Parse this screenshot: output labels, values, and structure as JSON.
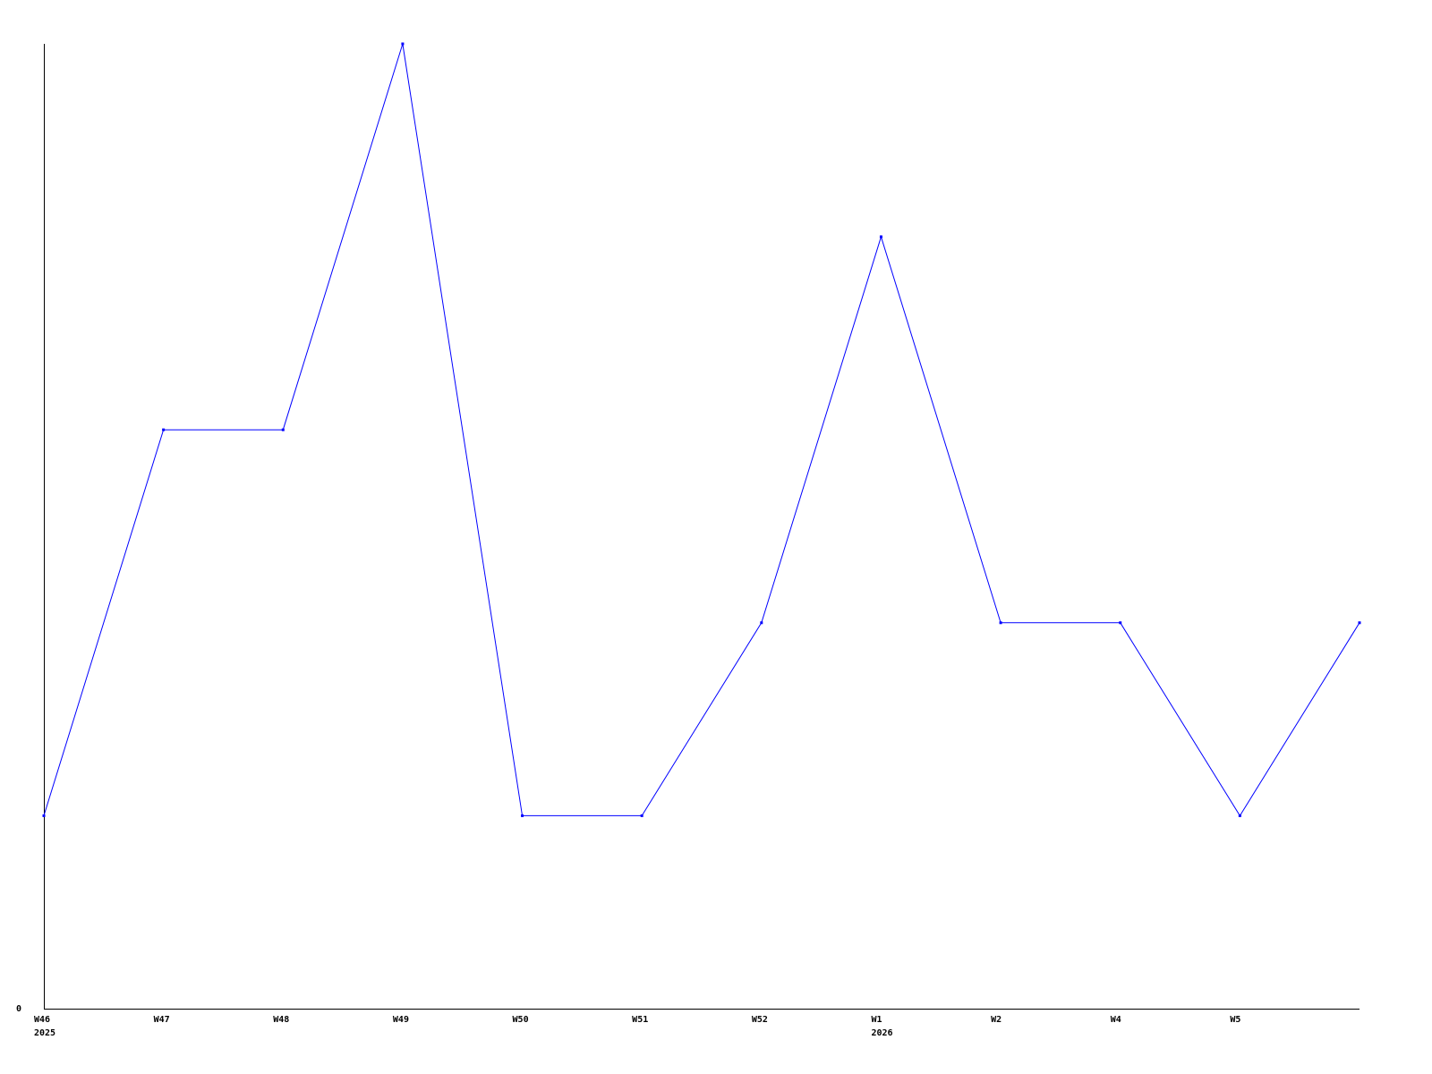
{
  "chart_data": {
    "type": "line",
    "title": "",
    "xlabel": "",
    "ylabel": "",
    "categories": [
      "W46",
      "W47",
      "W48",
      "W49",
      "W50",
      "W51",
      "W52",
      "W1",
      "W2",
      "W4",
      "W5",
      ""
    ],
    "year_labels": [
      {
        "index": 0,
        "label": "2025"
      },
      {
        "index": 7,
        "label": "2026"
      }
    ],
    "values": [
      1,
      3,
      3,
      5,
      1,
      1,
      2,
      4,
      2,
      2,
      1,
      2
    ],
    "y_tick_labels": [
      "0"
    ],
    "ylim": [
      0,
      5
    ],
    "grid": false,
    "legend": "none",
    "colors": {
      "line": "#0000ff",
      "axis": "#000000"
    }
  }
}
